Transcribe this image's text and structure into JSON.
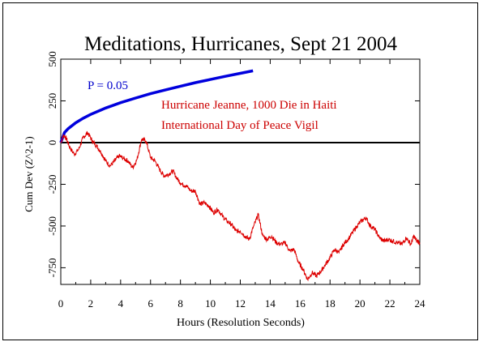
{
  "chart_data": {
    "type": "line",
    "title": "Meditations, Hurricanes, Sept 21 2004",
    "xlabel": "Hours (Resolution Seconds)",
    "ylabel": "Cum Dev (Z^2-1)",
    "xlim": [
      0,
      24
    ],
    "ylim": [
      -850,
      500
    ],
    "x_ticks": [
      "0",
      "2",
      "4",
      "6",
      "8",
      "10",
      "12",
      "14",
      "16",
      "18",
      "20",
      "22",
      "24"
    ],
    "y_ticks": [
      "500",
      "250",
      "0",
      "-250",
      "-500",
      "-750"
    ],
    "grid": false,
    "annotations": [
      {
        "text": "P = 0.05",
        "color": "#0000cc"
      },
      {
        "text": "Hurricane Jeanne, 1000 Die in Haiti",
        "color": "#cc0000"
      },
      {
        "text": "International Day of Peace Vigil",
        "color": "#cc0000"
      }
    ],
    "series": [
      {
        "name": "P = 0.05",
        "color": "#0000dd",
        "x": [
          0,
          0.25,
          0.5,
          1,
          1.5,
          2,
          3,
          4,
          5,
          6,
          7,
          8,
          9,
          10,
          11,
          12,
          12.85
        ],
        "values": [
          0,
          60,
          84,
          119,
          146,
          169,
          207,
          239,
          267,
          293,
          316,
          338,
          359,
          378,
          397,
          415,
          430
        ]
      },
      {
        "name": "Cum Dev",
        "color": "#dd0000",
        "x": [
          0,
          0.2,
          0.4,
          0.6,
          0.9,
          1.2,
          1.5,
          1.8,
          2.1,
          2.4,
          2.7,
          3.0,
          3.3,
          3.6,
          3.9,
          4.2,
          4.5,
          4.8,
          5.1,
          5.4,
          5.7,
          6.0,
          6.3,
          6.6,
          6.9,
          7.2,
          7.5,
          7.8,
          8.1,
          8.4,
          8.7,
          9.0,
          9.3,
          9.6,
          9.9,
          10.2,
          10.5,
          10.8,
          11.1,
          11.4,
          11.7,
          12.0,
          12.3,
          12.6,
          12.9,
          13.2,
          13.5,
          13.8,
          14.1,
          14.4,
          14.7,
          15.0,
          15.3,
          15.6,
          15.9,
          16.2,
          16.5,
          16.8,
          17.1,
          17.4,
          17.7,
          18.0,
          18.3,
          18.6,
          18.9,
          19.2,
          19.5,
          19.8,
          20.1,
          20.4,
          20.7,
          21.0,
          21.3,
          21.6,
          21.9,
          22.2,
          22.5,
          22.8,
          23.1,
          23.4,
          23.6,
          23.8,
          24.0
        ],
        "values": [
          0,
          45,
          20,
          -30,
          -70,
          -40,
          30,
          60,
          10,
          -20,
          -60,
          -110,
          -140,
          -110,
          -80,
          -95,
          -110,
          -150,
          -100,
          20,
          10,
          -90,
          -110,
          -160,
          -200,
          -190,
          -170,
          -220,
          -250,
          -260,
          -290,
          -290,
          -370,
          -360,
          -380,
          -420,
          -400,
          -440,
          -470,
          -490,
          -530,
          -530,
          -560,
          -580,
          -500,
          -430,
          -560,
          -580,
          -560,
          -600,
          -610,
          -600,
          -650,
          -640,
          -720,
          -760,
          -820,
          -780,
          -800,
          -770,
          -730,
          -690,
          -640,
          -660,
          -610,
          -580,
          -540,
          -500,
          -470,
          -450,
          -500,
          -520,
          -570,
          -590,
          -580,
          -590,
          -600,
          -610,
          -570,
          -610,
          -560,
          -590,
          -600
        ]
      }
    ],
    "zero_line": 0
  }
}
